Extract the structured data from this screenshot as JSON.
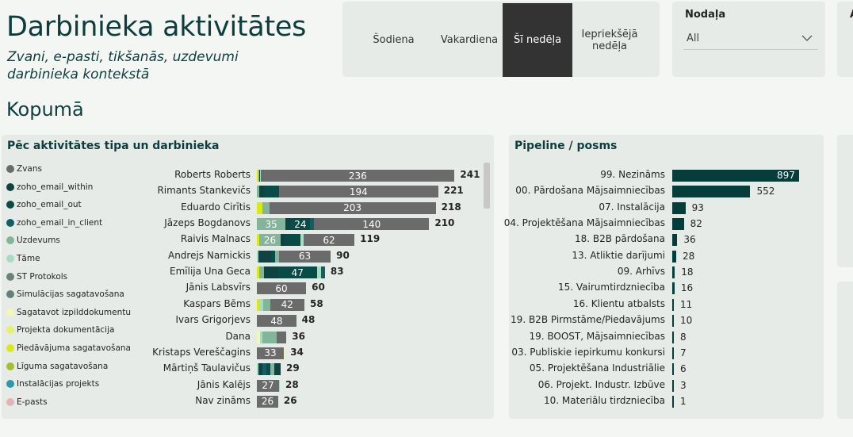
{
  "header": {
    "title": "Darbinieka aktivitātes",
    "subtitle": "Zvani, e-pasti, tikšanās, uzdevumi darbinieka kontekstā",
    "section": "Kopumā"
  },
  "date_slicer": {
    "options": [
      "Šodiena",
      "Vakardiena",
      "Šī nedēļa",
      "Iepriekšējā nedēļa"
    ],
    "selected": "Šī nedēļa"
  },
  "department_filter": {
    "label": "Nodaļa",
    "value": "All"
  },
  "edge_filter": {
    "label": "A"
  },
  "colors": {
    "Zvans": "#6b6b6b",
    "zoho_email_within": "#10433f",
    "zoho_email_out": "#094c47",
    "zoho_email_in_client": "#0f5f66",
    "Uzdevums": "#82b59a",
    "Tāme": "#a8dcc0",
    "ST Protokols": "#6d8079",
    "Simulācijas sagatavošana": "#63807a",
    "Sagatavot izpilddokumentu": "#f4f7b3",
    "Projekta dokumentācija": "#e8f06a",
    "Piedāvājuma sagatavošana": "#dbe81a",
    "Līguma sagatavošana": "#a7bf2e",
    "Instalācijas projekts": "#2c98a8",
    "E-pasts": "#e2b3b7",
    "pipeline_bar": "#053d3a",
    "selected_button": "#333333"
  },
  "activity_chart": {
    "title": "Pēc aktivitātes tipa un darbinieka",
    "legend": [
      "Zvans",
      "zoho_email_within",
      "zoho_email_out",
      "zoho_email_in_client",
      "Uzdevums",
      "Tāme",
      "ST Protokols",
      "Simulācijas sagatavošana",
      "Sagatavot izpilddokumentu",
      "Projekta dokumentācija",
      "Piedāvājuma sagatavošana",
      "Līguma sagatavošana",
      "Instalācijas projekts",
      "E-pasts"
    ],
    "rows": [
      {
        "name": "Roberts Roberts",
        "total": 241,
        "segments": [
          {
            "type": "Piedāvājuma sagatavošana",
            "value": 2
          },
          {
            "type": "Uzdevums",
            "value": 1
          },
          {
            "type": "zoho_email_out",
            "value": 1
          },
          {
            "type": "Tāme",
            "value": 1
          },
          {
            "type": "Zvans",
            "value": 236
          }
        ]
      },
      {
        "name": "Rimants Stankevičs",
        "total": 221,
        "segments": [
          {
            "type": "Uzdevums",
            "value": 3
          },
          {
            "type": "zoho_email_within",
            "value": 6
          },
          {
            "type": "zoho_email_out",
            "value": 18
          },
          {
            "type": "Zvans",
            "value": 194
          }
        ]
      },
      {
        "name": "Eduardo Cirītis",
        "total": 218,
        "segments": [
          {
            "type": "Piedāvājuma sagatavošana",
            "value": 7
          },
          {
            "type": "Uzdevums",
            "value": 8
          },
          {
            "type": "Zvans",
            "value": 203
          }
        ]
      },
      {
        "name": "Jāzeps Bogdanovs",
        "total": 210,
        "segments": [
          {
            "type": "Uzdevums",
            "value": 35
          },
          {
            "type": "zoho_email_within",
            "value": 6
          },
          {
            "type": "zoho_email_out",
            "value": 24
          },
          {
            "type": "zoho_email_in_client",
            "value": 5
          },
          {
            "type": "Zvans",
            "value": 140
          }
        ]
      },
      {
        "name": "Raivis Malnacs",
        "total": 119,
        "segments": [
          {
            "type": "Piedāvājuma sagatavošana",
            "value": 3
          },
          {
            "type": "Uzdevums",
            "value": 26
          },
          {
            "type": "zoho_email_within",
            "value": 5
          },
          {
            "type": "zoho_email_out",
            "value": 19
          },
          {
            "type": "Tāme",
            "value": 4
          },
          {
            "type": "Zvans",
            "value": 62
          }
        ]
      },
      {
        "name": "Andrejs Narnickis",
        "total": 90,
        "segments": [
          {
            "type": "Tāme",
            "value": 2
          },
          {
            "type": "zoho_email_within",
            "value": 15
          },
          {
            "type": "zoho_email_out",
            "value": 5
          },
          {
            "type": "Uzdevums",
            "value": 5
          },
          {
            "type": "Zvans",
            "value": 63
          }
        ]
      },
      {
        "name": "Emīlija Una Geca",
        "total": 83,
        "segments": [
          {
            "type": "Piedāvājuma sagatavošana",
            "value": 3
          },
          {
            "type": "Uzdevums",
            "value": 6
          },
          {
            "type": "zoho_email_within",
            "value": 17
          },
          {
            "type": "zoho_email_out",
            "value": 47
          },
          {
            "type": "Tāme",
            "value": 5
          },
          {
            "type": "zoho_email_in_client",
            "value": 5
          }
        ]
      },
      {
        "name": "Jānis Labsvīrs",
        "total": 60,
        "segments": [
          {
            "type": "Zvans",
            "value": 60
          }
        ]
      },
      {
        "name": "Kaspars Bēms",
        "total": 58,
        "segments": [
          {
            "type": "Piedāvājuma sagatavošana",
            "value": 3
          },
          {
            "type": "Tāme",
            "value": 5
          },
          {
            "type": "Uzdevums",
            "value": 8
          },
          {
            "type": "Zvans",
            "value": 42
          }
        ]
      },
      {
        "name": "Ivars Grigorjevs",
        "total": 48,
        "segments": [
          {
            "type": "Zvans",
            "value": 48
          }
        ]
      },
      {
        "name": "Dana",
        "total": 36,
        "segments": [
          {
            "type": "Sagatavot izpilddokumentu",
            "value": 4
          },
          {
            "type": "Tāme",
            "value": 3
          },
          {
            "type": "Uzdevums",
            "value": 17
          },
          {
            "type": "Zvans",
            "value": 12
          }
        ]
      },
      {
        "name": "Kristaps Vereščagins",
        "total": 34,
        "segments": [
          {
            "type": "Zvans",
            "value": 33
          },
          {
            "type": "Sagatavot izpilddokumentu",
            "value": 1
          }
        ]
      },
      {
        "name": "Mārtiņš Taulavičus",
        "total": 29,
        "segments": [
          {
            "type": "Tāme",
            "value": 2
          },
          {
            "type": "zoho_email_within",
            "value": 5
          },
          {
            "type": "zoho_email_in_client",
            "value": 5
          },
          {
            "type": "zoho_email_out",
            "value": 4
          },
          {
            "type": "Uzdevums",
            "value": 5
          },
          {
            "type": "zoho_email_within",
            "value": 8
          }
        ]
      },
      {
        "name": "Jānis Kalējs",
        "total": 28,
        "segments": [
          {
            "type": "Zvans",
            "value": 27
          },
          {
            "type": "Tāme",
            "value": 1
          }
        ]
      },
      {
        "name": "Nav zināms",
        "total": 26,
        "segments": [
          {
            "type": "Zvans",
            "value": 26
          }
        ]
      }
    ]
  },
  "pipeline_chart": {
    "title": "Pipeline / posms",
    "rows": [
      {
        "name": "99. Nezināms",
        "value": 897
      },
      {
        "name": "00. Pārdošana Mājsaimniecības",
        "value": 552
      },
      {
        "name": "07. Instalācija",
        "value": 93
      },
      {
        "name": "04. Projektēšana Mājsaimniecības",
        "value": 82
      },
      {
        "name": "18. B2B pārdošana",
        "value": 36
      },
      {
        "name": "13. Atliktie darījumi",
        "value": 28
      },
      {
        "name": "09. Arhīvs",
        "value": 18
      },
      {
        "name": "15. Vairumtirdzniecība",
        "value": 16
      },
      {
        "name": "16. Klientu atbalsts",
        "value": 11
      },
      {
        "name": "19. B2B Pirmstāme/Piedavājums",
        "value": 10
      },
      {
        "name": "19. BOOST, Mājsaimniecības",
        "value": 8
      },
      {
        "name": "03. Publiskie iepirkumu konkursi",
        "value": 7
      },
      {
        "name": "05. Projektēšana Industriālie",
        "value": 6
      },
      {
        "name": "06. Projekt. Industr. Izbūve",
        "value": 3
      },
      {
        "name": "10. Materiālu tirdzniecība",
        "value": 1
      }
    ]
  }
}
